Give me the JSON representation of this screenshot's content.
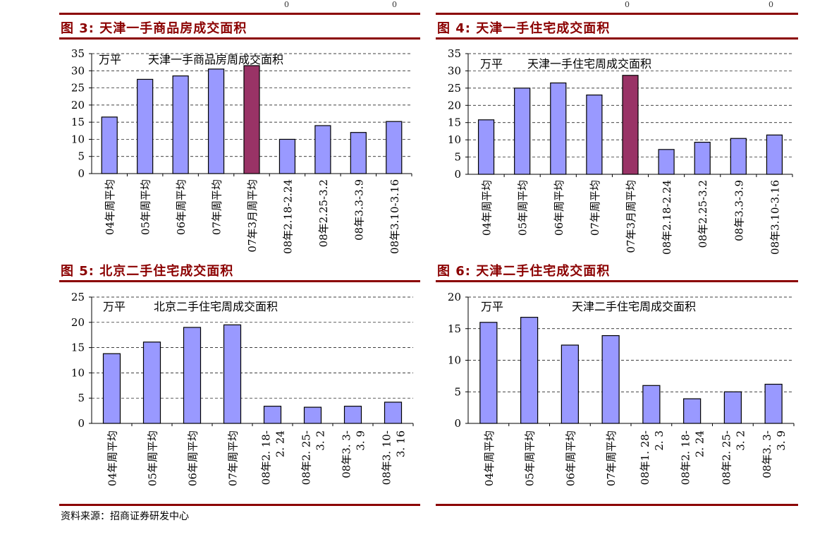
{
  "charts": [
    {
      "title": "图 3: 天津一手商品房成交面积",
      "chart_data": {
        "type": "bar",
        "unit_label": "万平",
        "inner_title": "天津一手商品房周成交面积",
        "categories": [
          "04年周平均",
          "05年周平均",
          "06年周平均",
          "07年周平均",
          "07年3月周平均",
          "08年2.18-2.24",
          "08年2.25-3.2",
          "08年3.3-3.9",
          "08年3.10-3.16"
        ],
        "values": [
          16.5,
          27.5,
          28.5,
          30.5,
          31.5,
          10,
          14,
          12,
          15.2
        ],
        "highlight_index": 4,
        "ylim": [
          0,
          35
        ],
        "yticks": [
          "0",
          "5",
          "10",
          "15",
          "20",
          "25",
          "30",
          "35"
        ],
        "grid": true,
        "bar_color": "#9999ff",
        "highlight_color": "#993366"
      }
    },
    {
      "title": "图 4: 天津一手住宅成交面积",
      "chart_data": {
        "type": "bar",
        "unit_label": "万平",
        "inner_title": "天津一手住宅周成交面积",
        "categories": [
          "04年周平均",
          "05年周平均",
          "06年周平均",
          "07年周平均",
          "07年3月周平均",
          "08年2.18-2.24",
          "08年2.25-3.2",
          "08年3.3-3.9",
          "08年3.10-3.16"
        ],
        "values": [
          15.8,
          25,
          26.5,
          23,
          28.7,
          7.2,
          9.3,
          10.4,
          11.4
        ],
        "highlight_index": 4,
        "ylim": [
          0,
          35
        ],
        "yticks": [
          "0",
          "5",
          "10",
          "15",
          "20",
          "25",
          "30",
          "35"
        ],
        "grid": true,
        "bar_color": "#9999ff",
        "highlight_color": "#993366"
      }
    },
    {
      "title": "图 5: 北京二手住宅成交面积",
      "chart_data": {
        "type": "bar",
        "unit_label": "万平",
        "inner_title": "北京二手住宅周成交面积",
        "categories": [
          "04年周平均",
          "05年周平均",
          "06年周平均",
          "07年周平均",
          "08年2. 18-2. 24",
          "08年2. 25-3. 2",
          "08年3. 3-3. 9",
          "08年3. 10-3. 16"
        ],
        "category_lines": [
          [
            "04年周平均"
          ],
          [
            "05年周平均"
          ],
          [
            "06年周平均"
          ],
          [
            "07年周平均"
          ],
          [
            "08年2. 18-",
            "2. 24"
          ],
          [
            "08年2. 25-",
            "3. 2"
          ],
          [
            "08年3. 3-",
            "3. 9"
          ],
          [
            "08年3. 10-",
            "3. 16"
          ]
        ],
        "values": [
          13.8,
          16.1,
          19,
          19.5,
          3.4,
          3.2,
          3.4,
          4.2
        ],
        "highlight_index": -1,
        "ylim": [
          0,
          25
        ],
        "yticks": [
          "0",
          "5",
          "10",
          "15",
          "20",
          "25"
        ],
        "grid": true,
        "bar_color": "#9999ff",
        "highlight_color": "#993366"
      }
    },
    {
      "title": "图 6: 天津二手住宅成交面积",
      "chart_data": {
        "type": "bar",
        "unit_label": "万平",
        "inner_title": "天津二手住宅周成交面积",
        "categories": [
          "04年周平均",
          "05年周平均",
          "06年周平均",
          "07年周平均",
          "08年1. 28-2. 3",
          "08年2. 18-2. 24",
          "08年2. 25-3. 2",
          "08年3. 3-3. 9"
        ],
        "category_lines": [
          [
            "04年周平均"
          ],
          [
            "05年周平均"
          ],
          [
            "06年周平均"
          ],
          [
            "07年周平均"
          ],
          [
            "08年1. 28-",
            "2. 3"
          ],
          [
            "08年2. 18-",
            "2. 24"
          ],
          [
            "08年2. 25-",
            "3. 2"
          ],
          [
            "08年3. 3-",
            "3. 9"
          ]
        ],
        "values": [
          16,
          16.8,
          12.4,
          13.9,
          6,
          3.9,
          5,
          6.2
        ],
        "highlight_index": -1,
        "ylim": [
          0,
          20
        ],
        "yticks": [
          "0",
          "5",
          "10",
          "15",
          "20"
        ],
        "grid": true,
        "bar_color": "#9999ff",
        "highlight_color": "#993366"
      }
    }
  ],
  "source": "资料来源：招商证券研发中心",
  "top_fragments": [
    "0",
    "0",
    "0",
    "0"
  ]
}
